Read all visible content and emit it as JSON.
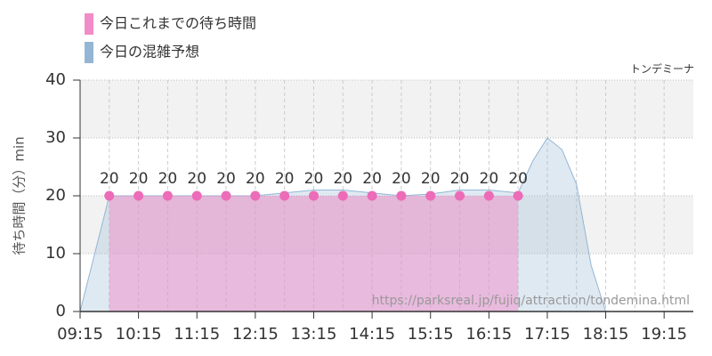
{
  "chart_data": {
    "type": "area",
    "annotation": "トンデミーナ",
    "watermark": "https://parksreal.jp/fujiq/attraction/tondemina.html",
    "y_label": "待ち時間（分）min",
    "xlim": [
      9.25,
      19.75
    ],
    "xticks": [
      {
        "value": 9.25,
        "label": "09:15"
      },
      {
        "value": 10.25,
        "label": "10:15"
      },
      {
        "value": 11.25,
        "label": "11:15"
      },
      {
        "value": 12.25,
        "label": "12:15"
      },
      {
        "value": 13.25,
        "label": "13:15"
      },
      {
        "value": 14.25,
        "label": "14:15"
      },
      {
        "value": 15.25,
        "label": "15:15"
      },
      {
        "value": 16.25,
        "label": "16:15"
      },
      {
        "value": 17.25,
        "label": "17:15"
      },
      {
        "value": 18.25,
        "label": "18:15"
      },
      {
        "value": 19.25,
        "label": "19:15"
      }
    ],
    "ylim": [
      0,
      40
    ],
    "yticks": [
      0,
      10,
      20,
      30,
      40
    ],
    "grid": true,
    "series": [
      {
        "name": "今日これまでの待ち時間",
        "color": "#f28cc8",
        "x": [
          9.75,
          10.25,
          10.75,
          11.25,
          11.75,
          12.25,
          12.75,
          13.25,
          13.75,
          14.25,
          14.75,
          15.25,
          15.75,
          16.25,
          16.75
        ],
        "values": [
          20,
          20,
          20,
          20,
          20,
          20,
          20,
          20,
          20,
          20,
          20,
          20,
          20,
          20,
          20
        ]
      },
      {
        "name": "今日の混雑予想",
        "color": "#94b6d4",
        "x": [
          9.25,
          9.5,
          9.75,
          10.25,
          10.75,
          11.25,
          11.75,
          12.25,
          12.75,
          13.25,
          13.75,
          14.25,
          14.75,
          15.25,
          15.75,
          16.25,
          16.75,
          17.0,
          17.25,
          17.5,
          17.75,
          18.0,
          18.25,
          19.75
        ],
        "values": [
          0,
          10,
          20,
          20,
          20,
          20,
          20,
          20,
          20.5,
          21,
          21,
          20.5,
          20,
          20.3,
          21,
          21,
          20.5,
          26,
          30,
          28,
          22,
          8,
          0,
          0
        ]
      }
    ]
  }
}
